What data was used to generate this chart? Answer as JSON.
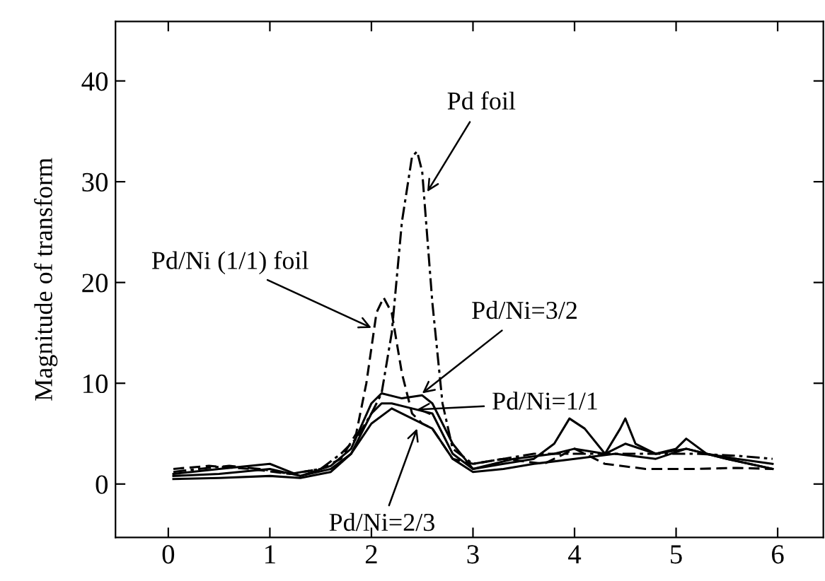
{
  "chart_data": {
    "type": "line",
    "ylabel": "Magnitude of transform",
    "xlim": [
      -0.52,
      6.45
    ],
    "ylim": [
      -5.3,
      45.9
    ],
    "xticks": [
      0,
      1,
      2,
      3,
      4,
      5,
      6
    ],
    "yticks": [
      0,
      10,
      20,
      30,
      40
    ],
    "grid": false,
    "legend": false,
    "marker": "none",
    "series": [
      {
        "color": "#000000",
        "line_style": "dashdot",
        "x": [
          0.05,
          0.3,
          0.6,
          0.9,
          1.2,
          1.5,
          1.7,
          1.85,
          2.0,
          2.1,
          2.2,
          2.3,
          2.4,
          2.45,
          2.5,
          2.6,
          2.7,
          2.8,
          3.0,
          3.3,
          3.6,
          4.0,
          4.4,
          4.8,
          5.2,
          5.6,
          5.95
        ],
        "values": [
          1.2,
          1.5,
          1.8,
          1.5,
          1.0,
          1.5,
          3,
          4.5,
          7,
          9,
          15,
          26,
          32.5,
          33,
          31,
          18,
          8,
          3.5,
          2,
          2.5,
          3,
          3,
          3,
          3,
          3,
          2.8,
          2.5
        ]
      },
      {
        "color": "#000000",
        "line_style": "dashed",
        "x": [
          0.05,
          0.4,
          0.8,
          1.2,
          1.5,
          1.7,
          1.85,
          1.95,
          2.05,
          2.12,
          2.2,
          2.3,
          2.4,
          2.5,
          2.6,
          2.7,
          2.8,
          3.0,
          3.3,
          3.7,
          4.0,
          4.3,
          4.7,
          5.2,
          5.6,
          5.95
        ],
        "values": [
          1.5,
          1.8,
          1.5,
          1.0,
          1.5,
          2.5,
          5,
          10,
          17,
          18.5,
          17,
          11,
          7,
          6,
          5.5,
          4,
          2.5,
          2,
          2.5,
          2,
          3.5,
          2,
          1.5,
          1.5,
          1.6,
          1.5
        ]
      },
      {
        "color": "#000000",
        "line_style": "solid",
        "x": [
          0.05,
          0.5,
          1.0,
          1.3,
          1.6,
          1.8,
          2.0,
          2.1,
          2.3,
          2.5,
          2.6,
          2.8,
          3.0,
          3.4,
          3.8,
          4.0,
          4.3,
          4.5,
          4.8,
          5.1,
          5.5,
          5.95
        ],
        "values": [
          0.8,
          1.0,
          1.5,
          0.8,
          1.8,
          3.5,
          8,
          9,
          8.5,
          8.8,
          8,
          4,
          1.5,
          2.5,
          3,
          3.5,
          3,
          4,
          3,
          3.5,
          2.5,
          1.5
        ]
      },
      {
        "color": "#000000",
        "line_style": "solid",
        "x": [
          0.05,
          0.5,
          1.0,
          1.3,
          1.6,
          1.8,
          2.0,
          2.1,
          2.2,
          2.4,
          2.6,
          2.7,
          2.8,
          3.0,
          3.3,
          3.6,
          3.8,
          3.95,
          4.1,
          4.3,
          4.45,
          4.5,
          4.6,
          4.8,
          5.0,
          5.1,
          5.3,
          5.6,
          5.95
        ],
        "values": [
          1.0,
          1.5,
          2,
          0.8,
          1.5,
          3,
          7,
          8,
          8,
          7.5,
          7,
          5,
          3,
          1.5,
          2,
          2.5,
          4,
          6.5,
          5.5,
          3,
          5.5,
          6.5,
          4,
          3,
          3.5,
          4.5,
          3,
          2.5,
          2
        ]
      },
      {
        "color": "#000000",
        "line_style": "solid",
        "x": [
          0.05,
          0.5,
          1.0,
          1.3,
          1.6,
          1.8,
          2.0,
          2.2,
          2.4,
          2.6,
          2.8,
          3.0,
          3.3,
          3.6,
          4.0,
          4.4,
          4.8,
          5.1,
          5.5,
          5.95
        ],
        "values": [
          0.5,
          0.6,
          0.8,
          0.6,
          1.2,
          3,
          6,
          7.5,
          6.5,
          5.5,
          2.5,
          1.2,
          1.5,
          2,
          2.5,
          3,
          2.5,
          3.5,
          2.5,
          1.5
        ]
      }
    ],
    "annotations": [
      {
        "text": "Pd foil",
        "x": 2.55,
        "y": 29
      },
      {
        "text": "Pd/Ni (1/1) foil",
        "x": 2.0,
        "y": 15.5
      },
      {
        "text": "Pd/Ni=3/2",
        "x": 2.5,
        "y": 9
      },
      {
        "text": "Pd/Ni=1/1",
        "x": 2.45,
        "y": 7.4
      },
      {
        "text": "Pd/Ni=2/3",
        "x": 2.45,
        "y": 5.5
      }
    ]
  }
}
